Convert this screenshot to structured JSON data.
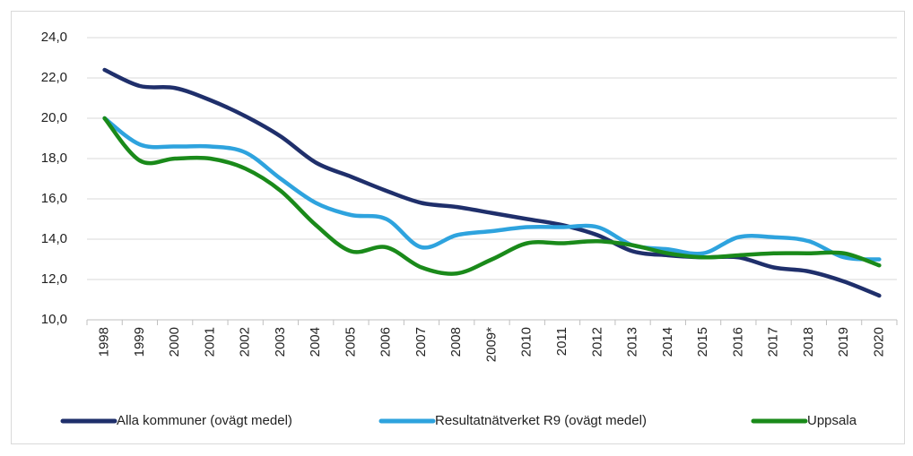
{
  "chart_data": {
    "type": "line",
    "categories": [
      "1998",
      "1999",
      "2000",
      "2001",
      "2002",
      "2003",
      "2004",
      "2005",
      "2006",
      "2007",
      "2008",
      "2009*",
      "2010",
      "2011",
      "2012",
      "2013",
      "2014",
      "2015",
      "2016",
      "2017",
      "2018",
      "2019",
      "2020"
    ],
    "series": [
      {
        "name": "Alla kommuner (ovägt medel)",
        "color": "#1f2f6b",
        "values": [
          22.4,
          21.6,
          21.5,
          20.9,
          20.1,
          19.1,
          17.8,
          17.1,
          16.4,
          15.8,
          15.6,
          15.3,
          15.0,
          14.7,
          14.2,
          13.4,
          13.2,
          13.1,
          13.1,
          12.6,
          12.4,
          11.9,
          11.2
        ]
      },
      {
        "name": "Resultatnätverket R9 (ovägt medel)",
        "color": "#2ea3de",
        "values": [
          20.0,
          18.7,
          18.6,
          18.6,
          18.3,
          17.0,
          15.8,
          15.2,
          15.0,
          13.6,
          14.2,
          14.4,
          14.6,
          14.6,
          14.6,
          13.7,
          13.5,
          13.3,
          14.1,
          14.1,
          13.9,
          13.1,
          13.0
        ]
      },
      {
        "name": "Uppsala",
        "color": "#1a8a1a",
        "values": [
          20.0,
          17.9,
          18.0,
          18.0,
          17.5,
          16.4,
          14.7,
          13.4,
          13.6,
          12.6,
          12.3,
          13.0,
          13.8,
          13.8,
          13.9,
          13.7,
          13.3,
          13.1,
          13.2,
          13.3,
          13.3,
          13.3,
          12.7
        ]
      }
    ],
    "ylim": [
      10,
      24
    ],
    "yticks": [
      {
        "value": 10,
        "label": "10,0"
      },
      {
        "value": 12,
        "label": "12,0"
      },
      {
        "value": 14,
        "label": "14,0"
      },
      {
        "value": 16,
        "label": "16,0"
      },
      {
        "value": 18,
        "label": "18,0"
      },
      {
        "value": 20,
        "label": "20,0"
      },
      {
        "value": 22,
        "label": "22,0"
      },
      {
        "value": 24,
        "label": "24,0"
      }
    ],
    "grid": true,
    "legend": "bottom"
  }
}
